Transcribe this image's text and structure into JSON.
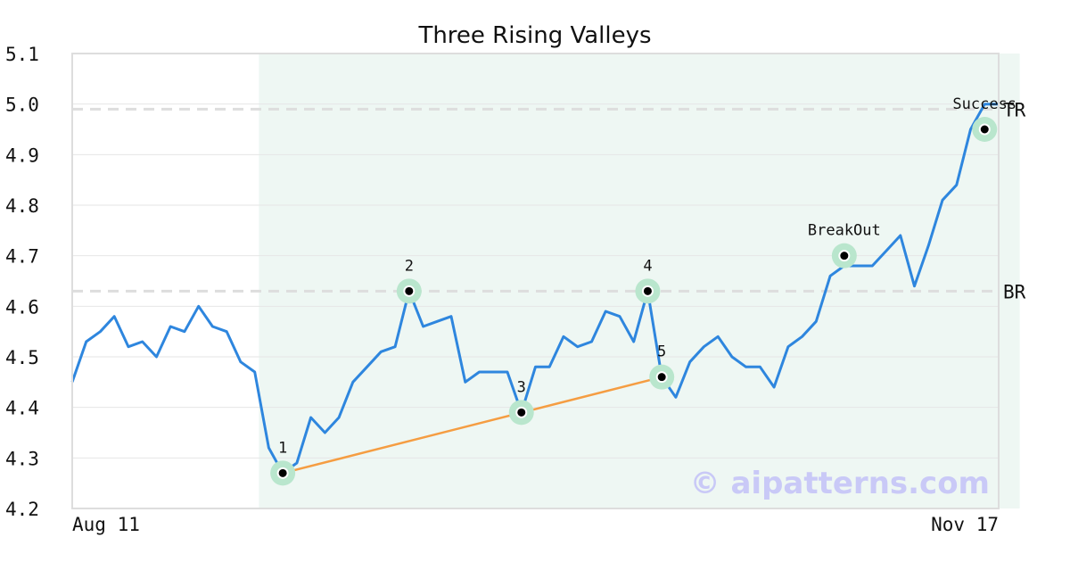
{
  "chart_data": {
    "type": "line",
    "title": "Three Rising Valleys",
    "xlabel": "",
    "ylabel": "",
    "ylim": [
      4.2,
      5.1
    ],
    "y_ticks": [
      "4.2",
      "4.3",
      "4.4",
      "4.5",
      "4.6",
      "4.7",
      "4.8",
      "4.9",
      "5.0",
      "5.1"
    ],
    "x_tick_labels": [
      "Aug 11",
      "Nov 17"
    ],
    "grid": true,
    "colors": {
      "line": "#2e86de",
      "trendline": "#f59d42",
      "highlight": "#eef7f3",
      "marker_ring": "#b9e6cd",
      "reference": "#dddddd"
    },
    "series": [
      {
        "values": [
          4.45,
          4.53,
          4.55,
          4.58,
          4.52,
          4.53,
          4.5,
          4.56,
          4.55,
          4.6,
          4.56,
          4.55,
          4.49,
          4.47,
          4.32,
          4.27,
          4.29,
          4.38,
          4.35,
          4.38,
          4.45,
          4.48,
          4.51,
          4.52,
          4.63,
          4.56,
          4.57,
          4.58,
          4.45,
          4.47,
          4.47,
          4.47,
          4.39,
          4.48,
          4.48,
          4.54,
          4.52,
          4.53,
          4.59,
          4.58,
          4.53,
          4.63,
          4.46,
          4.42,
          4.49,
          4.52,
          4.54,
          4.5,
          4.48,
          4.48,
          4.44,
          4.52,
          4.54,
          4.57,
          4.66,
          4.68,
          4.68,
          4.68,
          4.71,
          4.74,
          4.64,
          4.72,
          4.81,
          4.84,
          4.95,
          5.0,
          5.0
        ]
      }
    ],
    "highlight_range": [
      13.3,
      67.5
    ],
    "reference_lines": [
      {
        "label": "TR",
        "value": 4.99
      },
      {
        "label": "BR",
        "value": 4.63
      }
    ],
    "trendline": [
      {
        "x": 15,
        "y": 4.27
      },
      {
        "x": 42,
        "y": 4.46
      }
    ],
    "annotations": [
      {
        "label": "1",
        "x": 15,
        "y": 4.27,
        "label_side": "above"
      },
      {
        "label": "2",
        "x": 24,
        "y": 4.63,
        "label_side": "above"
      },
      {
        "label": "3",
        "x": 32,
        "y": 4.39,
        "label_side": "above"
      },
      {
        "label": "4",
        "x": 41,
        "y": 4.63,
        "label_side": "above"
      },
      {
        "label": "5",
        "x": 42,
        "y": 4.46,
        "label_side": "above"
      },
      {
        "label": "BreakOut",
        "x": 55,
        "y": 4.7,
        "label_side": "above"
      },
      {
        "label": "Success",
        "x": 65,
        "y": 4.95,
        "label_side": "above"
      }
    ],
    "watermark": "© aipatterns.com"
  }
}
